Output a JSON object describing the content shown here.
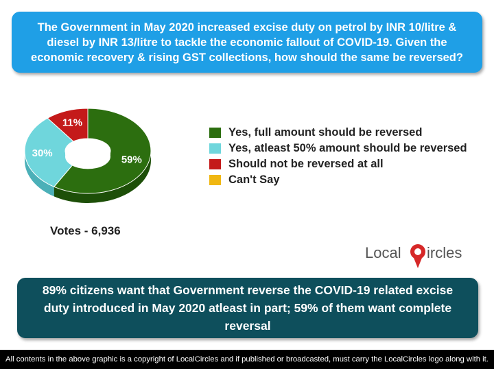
{
  "question": "The Government in May 2020 increased excise duty on petrol by INR 10/litre & diesel by INR 13/litre to tackle the economic fallout of COVID-19. Given the economic recovery & rising GST collections, how should the same be reversed?",
  "chart_data": {
    "type": "pie",
    "style": "3d-donut",
    "slices": [
      {
        "label": "Yes, full amount should be reversed",
        "value": 59,
        "display": "59%",
        "color": "#2c6e0f",
        "side": "#1d4f08"
      },
      {
        "label": "Yes, atleast 50% amount should be reversed",
        "value": 30,
        "display": "30%",
        "color": "#6fd6dc",
        "side": "#4bb0b8"
      },
      {
        "label": "Should not be reversed at all",
        "value": 11,
        "display": "11%",
        "color": "#c41a1a",
        "side": "#8e1010"
      },
      {
        "label": "Can't Say",
        "value": 0,
        "display": "",
        "color": "#f0b712",
        "side": "#c08f0a"
      }
    ]
  },
  "votes": "Votes - 6,936",
  "logo": {
    "text_before": "Local",
    "letter": "C",
    "text_after": "ircles"
  },
  "conclusion": "89% citizens want that Government reverse the COVID-19 related excise duty introduced in May 2020 atleast in part; 59% of them want complete reversal",
  "footer": "All contents in the above graphic is a copyright of LocalCircles and if published or broadcasted, must carry the LocalCircles logo along with it."
}
